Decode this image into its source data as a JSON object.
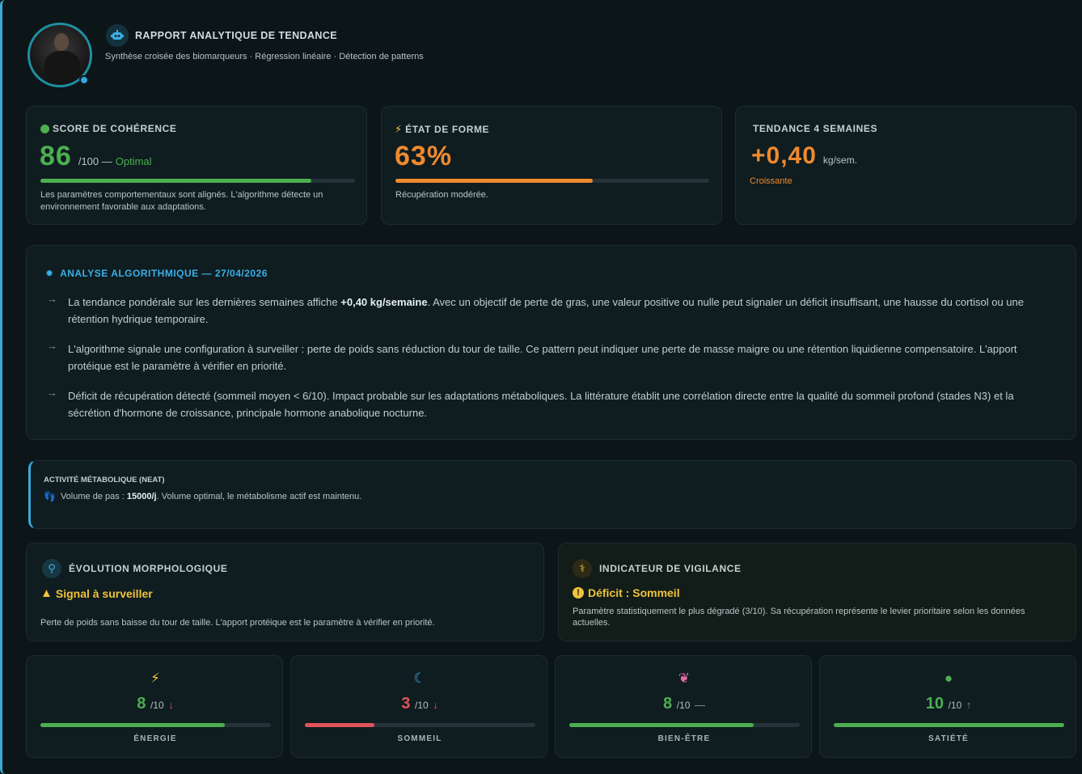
{
  "header": {
    "title": "RAPPORT ANALYTIQUE DE TENDANCE",
    "subtitle": "Synthèse croisée des biomarqueurs · Régression linéaire · Détection de patterns"
  },
  "score": {
    "label": "SCORE DE COHÉRENCE",
    "value": "86",
    "unit": "/100 —",
    "status": "Optimal",
    "progress": 0.86,
    "description": "Les paramètres comportementaux sont alignés. L'algorithme détecte un environnement favorable aux adaptations."
  },
  "forme": {
    "label": "ÉTAT DE FORME",
    "value": "63%",
    "progress": 0.63,
    "description": "Récupération modérée."
  },
  "tendance": {
    "label": "TENDANCE 4 SEMAINES",
    "value": "+0,40",
    "unit": "kg/sem.",
    "status": "Croissante"
  },
  "analyse": {
    "title": "ANALYSE ALGORITHMIQUE — 27/04/2026",
    "bullets": [
      {
        "pre": "La tendance pondérale sur les dernières semaines affiche ",
        "bold": "+0,40 kg/semaine",
        "post": ". Avec un objectif de perte de gras, une valeur positive ou nulle peut signaler un déficit insuffisant, une hausse du cortisol ou une rétention hydrique temporaire."
      },
      {
        "pre": "L'algorithme signale une configuration à surveiller : perte de poids sans réduction du tour de taille. Ce pattern peut indiquer une perte de masse maigre ou une rétention liquidienne compensatoire. L'apport protéique est le paramètre à vérifier en priorité.",
        "bold": "",
        "post": ""
      },
      {
        "pre": "Déficit de récupération détecté (sommeil moyen < 6/10). Impact probable sur les adaptations métaboliques. La littérature établit une corrélation directe entre la qualité du sommeil profond (stades N3) et la sécrétion d'hormone de croissance, principale hormone anabolique nocturne.",
        "bold": "",
        "post": ""
      }
    ]
  },
  "neat": {
    "title": "ACTIVITÉ MÉTABOLIQUE (NEAT)",
    "pre": "Volume de pas : ",
    "bold": "15000/j",
    "post": ". Volume optimal, le métabolisme actif est maintenu."
  },
  "morpho": {
    "title": "ÉVOLUTION MORPHOLOGIQUE",
    "signal": "Signal à surveiller",
    "description": "Perte de poids sans baisse du tour de taille. L'apport protéique est le paramètre à vérifier en priorité."
  },
  "vigilance": {
    "title": "INDICATEUR DE VIGILANCE",
    "signal": "Déficit : Sommeil",
    "description": "Paramètre statistiquement le plus dégradé (3/10). Sa récupération représente le levier prioritaire selon les données actuelles."
  },
  "metrics": [
    {
      "name": "ÉNERGIE",
      "value": "8",
      "unit": "/10",
      "trend": "↓",
      "progress": 0.8,
      "icon": "lightning-icon",
      "color": "#4caf50",
      "trend_color": "#e0545a"
    },
    {
      "name": "SOMMEIL",
      "value": "3",
      "unit": "/10",
      "trend": "↓",
      "progress": 0.3,
      "icon": "moon-icon",
      "color": "#e0545a",
      "trend_color": "#e0545a"
    },
    {
      "name": "BIEN-ÊTRE",
      "value": "8",
      "unit": "/10",
      "trend": "—",
      "progress": 0.8,
      "icon": "brain-icon",
      "color": "#4caf50",
      "trend_color": "#8a969a"
    },
    {
      "name": "SATIÉTÉ",
      "value": "10",
      "unit": "/10",
      "trend": "↑",
      "progress": 1.0,
      "icon": "apple-icon",
      "color": "#4caf50",
      "trend_color": "#4caf50"
    }
  ],
  "colors": {
    "accent": "#3aa8d8",
    "green": "#4caf50",
    "orange": "#ef8a2e",
    "yellow": "#f0c43a",
    "red": "#e0545a"
  }
}
